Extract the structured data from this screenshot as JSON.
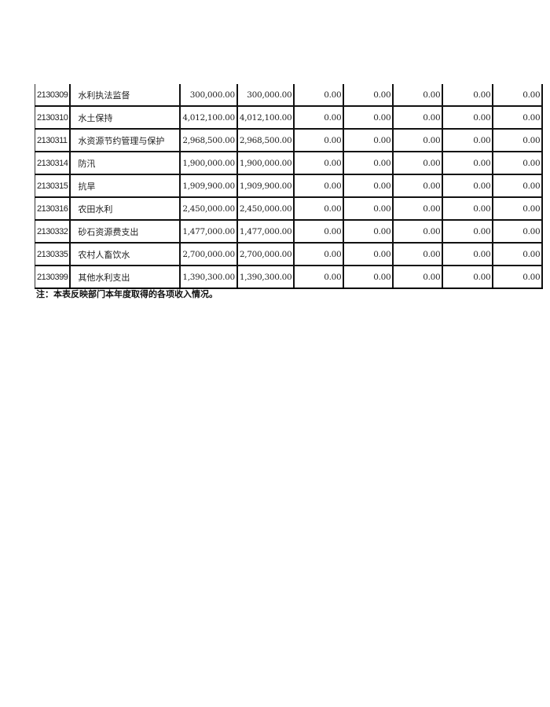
{
  "rows": [
    {
      "code": "2130309",
      "name": "水利执法监督",
      "v": [
        "300,000.00",
        "300,000.00",
        "0.00",
        "0.00",
        "0.00",
        "0.00",
        "0.00"
      ]
    },
    {
      "code": "2130310",
      "name": "水土保持",
      "v": [
        "4,012,100.00",
        "4,012,100.00",
        "0.00",
        "0.00",
        "0.00",
        "0.00",
        "0.00"
      ]
    },
    {
      "code": "2130311",
      "name": "水资源节约管理与保护",
      "v": [
        "2,968,500.00",
        "2,968,500.00",
        "0.00",
        "0.00",
        "0.00",
        "0.00",
        "0.00"
      ]
    },
    {
      "code": "2130314",
      "name": "防汛",
      "v": [
        "1,900,000.00",
        "1,900,000.00",
        "0.00",
        "0.00",
        "0.00",
        "0.00",
        "0.00"
      ]
    },
    {
      "code": "2130315",
      "name": "抗旱",
      "v": [
        "1,909,900.00",
        "1,909,900.00",
        "0.00",
        "0.00",
        "0.00",
        "0.00",
        "0.00"
      ]
    },
    {
      "code": "2130316",
      "name": "农田水利",
      "v": [
        "2,450,000.00",
        "2,450,000.00",
        "0.00",
        "0.00",
        "0.00",
        "0.00",
        "0.00"
      ]
    },
    {
      "code": "2130332",
      "name": "砂石资源费支出",
      "v": [
        "1,477,000.00",
        "1,477,000.00",
        "0.00",
        "0.00",
        "0.00",
        "0.00",
        "0.00"
      ]
    },
    {
      "code": "2130335",
      "name": "农村人畜饮水",
      "v": [
        "2,700,000.00",
        "2,700,000.00",
        "0.00",
        "0.00",
        "0.00",
        "0.00",
        "0.00"
      ]
    },
    {
      "code": "2130399",
      "name": "其他水利支出",
      "v": [
        "1,390,300.00",
        "1,390,300.00",
        "0.00",
        "0.00",
        "0.00",
        "0.00",
        "0.00"
      ]
    }
  ],
  "note": "注：本表反映部门本年度取得的各项收入情况。"
}
